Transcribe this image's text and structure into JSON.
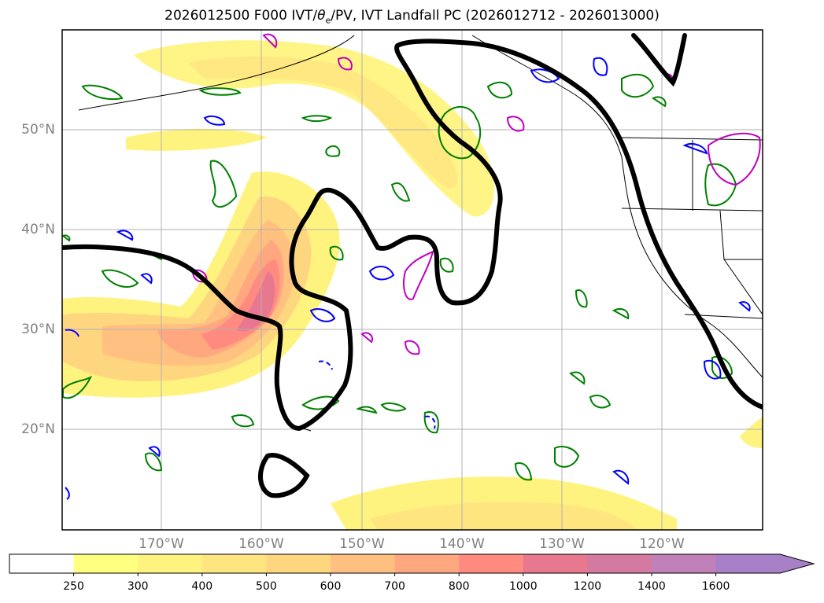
{
  "title": {
    "prefix": "2026012500 F000 IVT/",
    "theta": "θ",
    "theta_sub": "e",
    "suffix": "/PV, IVT Landfall PC (2026012712 - 2026013000)"
  },
  "map": {
    "lat_labels": [
      "50°N",
      "40°N",
      "30°N",
      "20°N"
    ],
    "lon_labels": [
      "170°W",
      "160°W",
      "150°W",
      "140°W",
      "130°W",
      "120°W"
    ],
    "lat_values": [
      50,
      40,
      30,
      20
    ],
    "lon_values": [
      -170,
      -160,
      -150,
      -140,
      -130,
      -120
    ],
    "extent": {
      "lon_min": -180,
      "lon_max": -110,
      "lat_min": 10,
      "lat_max": 60
    }
  },
  "colorbar": {
    "levels": [
      "250",
      "300",
      "400",
      "500",
      "600",
      "700",
      "800",
      "1000",
      "1200",
      "1400",
      "1600"
    ],
    "colors": [
      "#ffffff",
      "#ffff80",
      "#fff380",
      "#ffe580",
      "#ffd680",
      "#ffc080",
      "#ffa880",
      "#ff8a80",
      "#e87890",
      "#d47aa0",
      "#c080b8",
      "#a880c8"
    ],
    "extend": "max"
  },
  "legend_colors": {
    "pc_contour": "#000000",
    "theta_e": "#008000",
    "pv": "#0000ff",
    "other": "#c000c0",
    "coast": "#000000"
  }
}
